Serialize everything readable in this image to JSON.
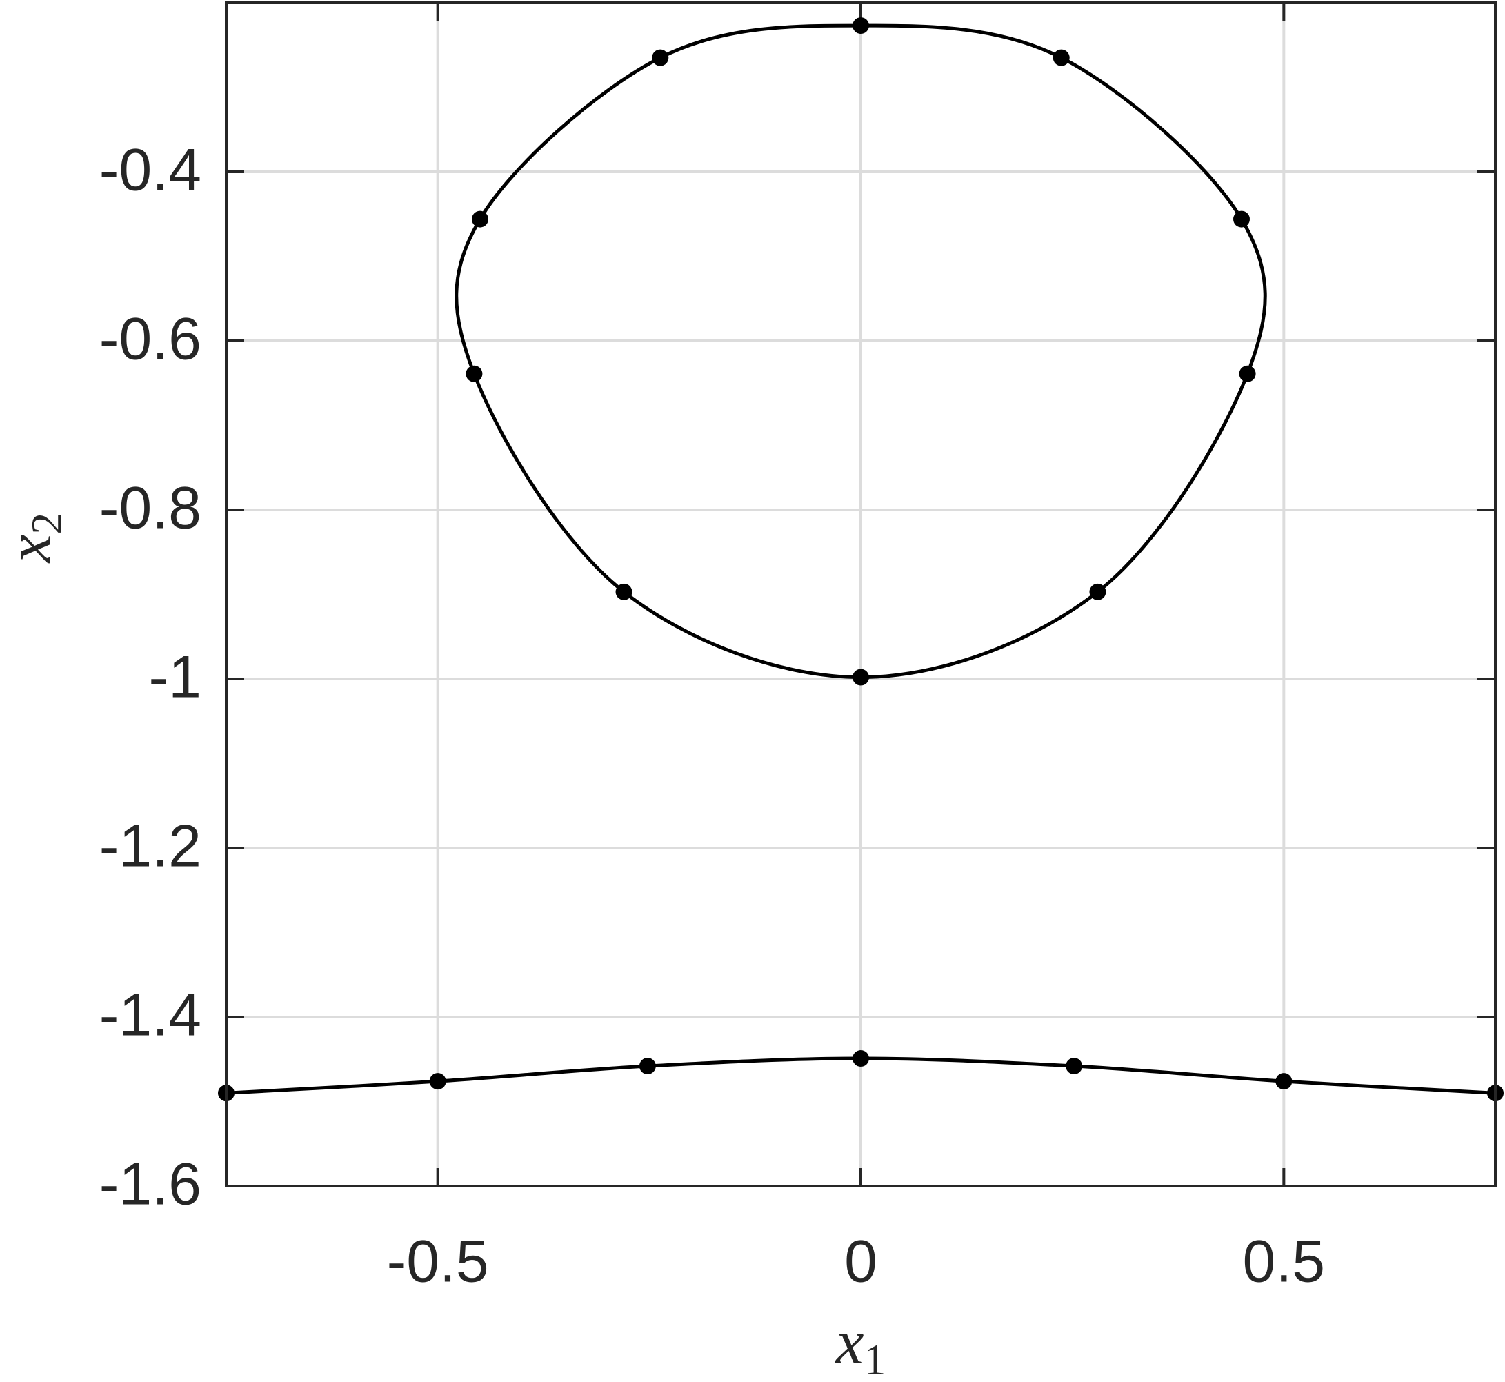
{
  "chart_data": {
    "type": "line",
    "xlabel": {
      "base": "x",
      "sub": "1"
    },
    "ylabel": {
      "base": "x",
      "sub": "2"
    },
    "xlim": [
      -0.75,
      0.75
    ],
    "xticks": [
      -0.5,
      0,
      0.5
    ],
    "ylim": [
      -1.6,
      -0.2
    ],
    "yticks": [
      -0.4,
      -0.6,
      -0.8,
      -1,
      -1.2,
      -1.4,
      -1.6
    ],
    "grid": true,
    "series": [
      {
        "color": "#000000",
        "closed": true,
        "x": [
          0,
          0.237,
          0.45,
          0.457,
          0.28,
          0,
          -0.28,
          -0.457,
          -0.45,
          -0.237
        ],
        "values": [
          -0.227,
          -0.265,
          -0.456,
          -0.639,
          -0.897,
          -0.998,
          -0.897,
          -0.639,
          -0.456,
          -0.265
        ]
      },
      {
        "color": "#000000",
        "closed": false,
        "x": [
          -0.75,
          -0.5,
          -0.252,
          0,
          0.252,
          0.5,
          0.75
        ],
        "values": [
          -1.49,
          -1.476,
          -1.458,
          -1.449,
          -1.458,
          -1.476,
          -1.49
        ]
      }
    ]
  }
}
